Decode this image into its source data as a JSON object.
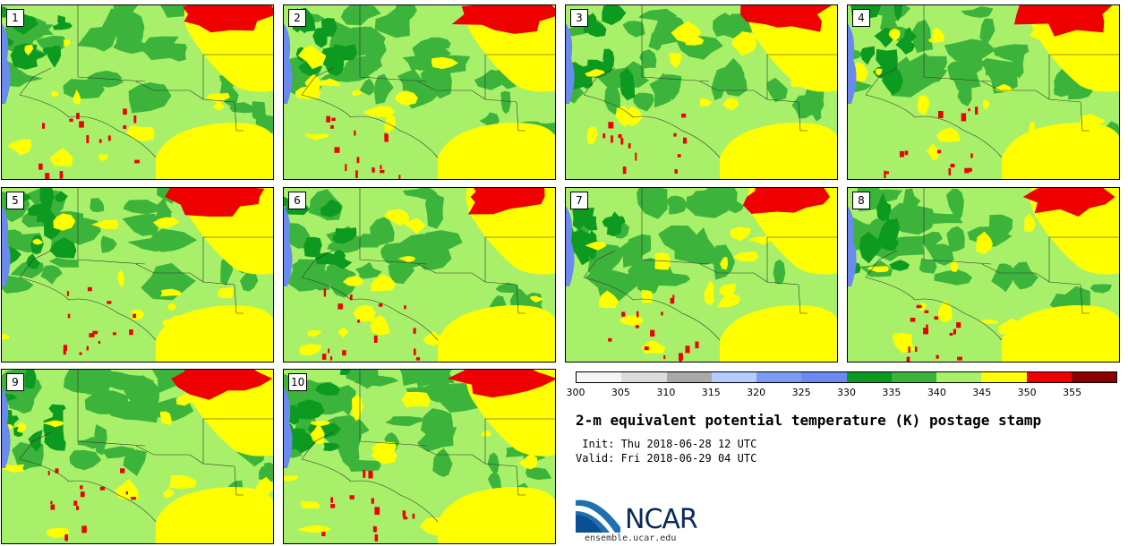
{
  "panels": [
    {
      "label": "1"
    },
    {
      "label": "2"
    },
    {
      "label": "3"
    },
    {
      "label": "4"
    },
    {
      "label": "5"
    },
    {
      "label": "6"
    },
    {
      "label": "7"
    },
    {
      "label": "8"
    },
    {
      "label": "9"
    },
    {
      "label": "10"
    }
  ],
  "colorbar": {
    "colors": [
      "#f5f5f5",
      "#dcdcdc",
      "#a9a9a9",
      "#b4ccff",
      "#7b9cf0",
      "#6a8af0",
      "#0d9a20",
      "#3cb43c",
      "#a8f06a",
      "#ffff00",
      "#ee0000",
      "#8b0000"
    ],
    "ticks": [
      "300",
      "305",
      "310",
      "315",
      "320",
      "325",
      "330",
      "335",
      "340",
      "345",
      "350",
      "355"
    ]
  },
  "title": "2-m equivalent potential temperature (K) postage stamp",
  "init": " Init: Thu 2018-06-28 12 UTC",
  "valid": "Valid: Fri 2018-06-29 04 UTC",
  "logo": {
    "text": "NCAR",
    "url": "ensemble.ucar.edu"
  },
  "map_colors": {
    "land": "#a8f06a",
    "dark_green": "#3cb43c",
    "darker_green": "#0d9a20",
    "yellow": "#ffff00",
    "red": "#ee0000",
    "blue": "#6a8af0",
    "border": "#333333"
  }
}
